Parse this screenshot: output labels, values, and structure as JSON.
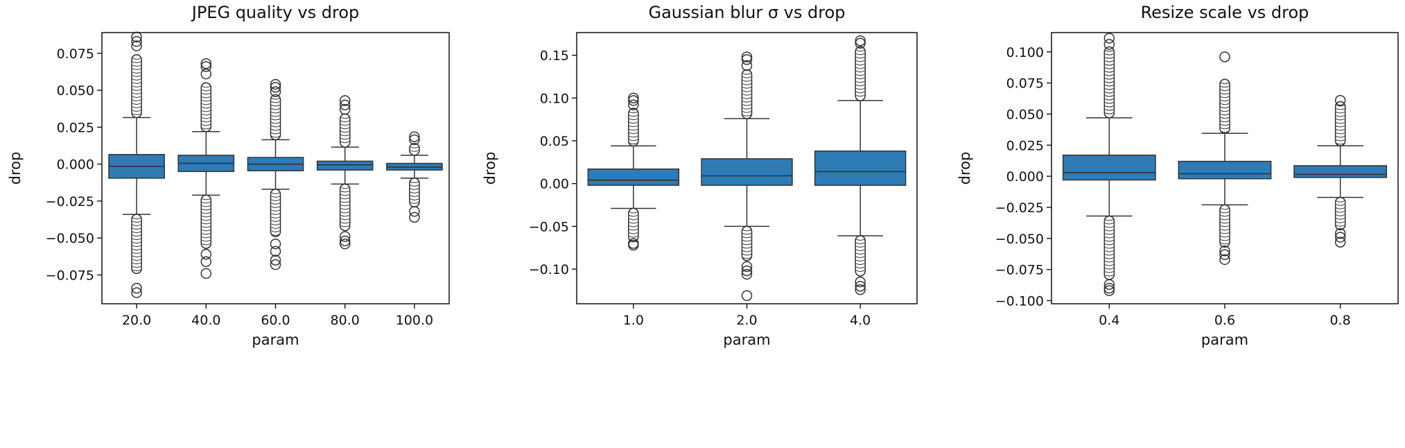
{
  "chart_data": [
    {
      "type": "box",
      "title": "JPEG quality vs drop",
      "xlabel": "param",
      "ylabel": "drop",
      "categories": [
        "20.0",
        "40.0",
        "60.0",
        "80.0",
        "100.0"
      ],
      "yticks": [
        -0.075,
        -0.05,
        -0.025,
        0.0,
        0.025,
        0.05,
        0.075
      ],
      "ytick_labels": [
        "−0.075",
        "−0.050",
        "−0.025",
        "0.000",
        "0.025",
        "0.050",
        "0.075"
      ],
      "ylim": [
        -0.0945,
        0.089
      ],
      "boxes": [
        {
          "whisker_low": -0.034,
          "q1": -0.0095,
          "median": -0.0015,
          "q3": 0.0065,
          "whisker_high": 0.0315,
          "outlier_low": [
            -0.034,
            -0.074
          ],
          "outlier_high": [
            0.0315,
            0.074
          ],
          "outlier_extreme_low": [
            -0.084,
            -0.087
          ],
          "outlier_extreme_high": [
            0.08,
            0.083,
            0.086
          ]
        },
        {
          "whisker_low": -0.021,
          "q1": -0.005,
          "median": 0.0005,
          "q3": 0.006,
          "whisker_high": 0.022,
          "outlier_low": [
            -0.021,
            -0.057
          ],
          "outlier_high": [
            0.022,
            0.055
          ],
          "outlier_extreme_low": [
            -0.061,
            -0.066,
            -0.074
          ],
          "outlier_extreme_high": [
            0.061,
            0.066,
            0.068
          ]
        },
        {
          "whisker_low": -0.017,
          "q1": -0.0045,
          "median": 0.0,
          "q3": 0.0045,
          "whisker_high": 0.0165,
          "outlier_low": [
            -0.017,
            -0.049
          ],
          "outlier_high": [
            0.0165,
            0.047
          ],
          "outlier_extreme_low": [
            -0.054,
            -0.059,
            -0.065,
            -0.068
          ],
          "outlier_extreme_high": [
            0.049,
            0.052,
            0.054
          ]
        },
        {
          "whisker_low": -0.0135,
          "q1": -0.004,
          "median": -0.0005,
          "q3": 0.002,
          "whisker_high": 0.0115,
          "outlier_low": [
            -0.0135,
            -0.045
          ],
          "outlier_high": [
            0.0115,
            0.034
          ],
          "outlier_extreme_low": [
            -0.049,
            -0.052,
            -0.054
          ],
          "outlier_extreme_high": [
            0.037,
            0.04,
            0.043
          ]
        },
        {
          "whisker_low": -0.0095,
          "q1": -0.004,
          "median": -0.002,
          "q3": 0.0005,
          "whisker_high": 0.006,
          "outlier_low": [
            -0.0095,
            -0.029
          ],
          "outlier_high": [
            0.006,
            0.014
          ],
          "outlier_extreme_low": [
            -0.032,
            -0.036
          ],
          "outlier_extreme_high": [
            0.0165,
            0.0185
          ]
        }
      ]
    },
    {
      "type": "box",
      "title": "Gaussian blur σ vs drop",
      "xlabel": "param",
      "ylabel": "drop",
      "categories": [
        "1.0",
        "2.0",
        "4.0"
      ],
      "yticks": [
        -0.1,
        -0.05,
        0.0,
        0.05,
        0.1,
        0.15
      ],
      "ytick_labels": [
        "−0.10",
        "−0.05",
        "0.00",
        "0.05",
        "0.10",
        "0.15"
      ],
      "ylim": [
        -0.1405,
        0.1765
      ],
      "boxes": [
        {
          "whisker_low": -0.029,
          "q1": -0.002,
          "median": 0.004,
          "q3": 0.017,
          "whisker_high": 0.044,
          "outlier_low": [
            -0.029,
            -0.068
          ],
          "outlier_high": [
            0.044,
            0.088
          ],
          "outlier_extreme_low": [
            -0.07,
            -0.072
          ],
          "outlier_extreme_high": [
            0.092,
            0.097,
            0.1
          ]
        },
        {
          "whisker_low": -0.05,
          "q1": -0.002,
          "median": 0.009,
          "q3": 0.029,
          "whisker_high": 0.076,
          "outlier_low": [
            -0.05,
            -0.09
          ],
          "outlier_high": [
            0.076,
            0.133
          ],
          "outlier_extreme_low": [
            -0.097,
            -0.102,
            -0.106,
            -0.131
          ],
          "outlier_extreme_high": [
            0.138,
            0.145,
            0.148
          ]
        },
        {
          "whisker_low": -0.061,
          "q1": -0.002,
          "median": 0.014,
          "q3": 0.038,
          "whisker_high": 0.097,
          "outlier_low": [
            -0.061,
            -0.108
          ],
          "outlier_high": [
            0.097,
            0.16
          ],
          "outlier_extreme_low": [
            -0.115,
            -0.12,
            -0.124
          ],
          "outlier_extreme_high": [
            0.164,
            0.167
          ]
        }
      ]
    },
    {
      "type": "box",
      "title": "Resize scale vs drop",
      "xlabel": "param",
      "ylabel": "drop",
      "categories": [
        "0.4",
        "0.6",
        "0.8"
      ],
      "yticks": [
        -0.1,
        -0.075,
        -0.05,
        -0.025,
        0.0,
        0.025,
        0.05,
        0.075,
        0.1
      ],
      "ytick_labels": [
        "−0.100",
        "−0.075",
        "−0.050",
        "−0.025",
        "0.000",
        "0.025",
        "0.050",
        "0.075",
        "0.100"
      ],
      "ylim": [
        -0.1025,
        0.1155
      ],
      "boxes": [
        {
          "whisker_low": -0.032,
          "q1": -0.003,
          "median": 0.003,
          "q3": 0.017,
          "whisker_high": 0.047,
          "outlier_low": [
            -0.032,
            -0.083
          ],
          "outlier_high": [
            0.047,
            0.104
          ],
          "outlier_extreme_low": [
            -0.087,
            -0.09,
            -0.092
          ],
          "outlier_extreme_high": [
            0.106,
            0.111
          ]
        },
        {
          "whisker_low": -0.023,
          "q1": -0.002,
          "median": 0.002,
          "q3": 0.012,
          "whisker_high": 0.0345,
          "outlier_low": [
            -0.023,
            -0.057
          ],
          "outlier_high": [
            0.0345,
            0.078
          ],
          "outlier_extreme_low": [
            -0.06,
            -0.063,
            -0.067
          ],
          "outlier_extreme_high": [
            0.096
          ]
        },
        {
          "whisker_low": -0.017,
          "q1": -0.001,
          "median": 0.0015,
          "q3": 0.0085,
          "whisker_high": 0.0245,
          "outlier_low": [
            -0.017,
            -0.043
          ],
          "outlier_high": [
            0.0245,
            0.06
          ],
          "outlier_extreme_low": [
            -0.046,
            -0.049,
            -0.053
          ],
          "outlier_extreme_high": [
            0.061
          ]
        }
      ]
    }
  ],
  "style": {
    "box_fill": "#2e7bb6",
    "line_color": "#333333",
    "axis_color": "#111111"
  }
}
